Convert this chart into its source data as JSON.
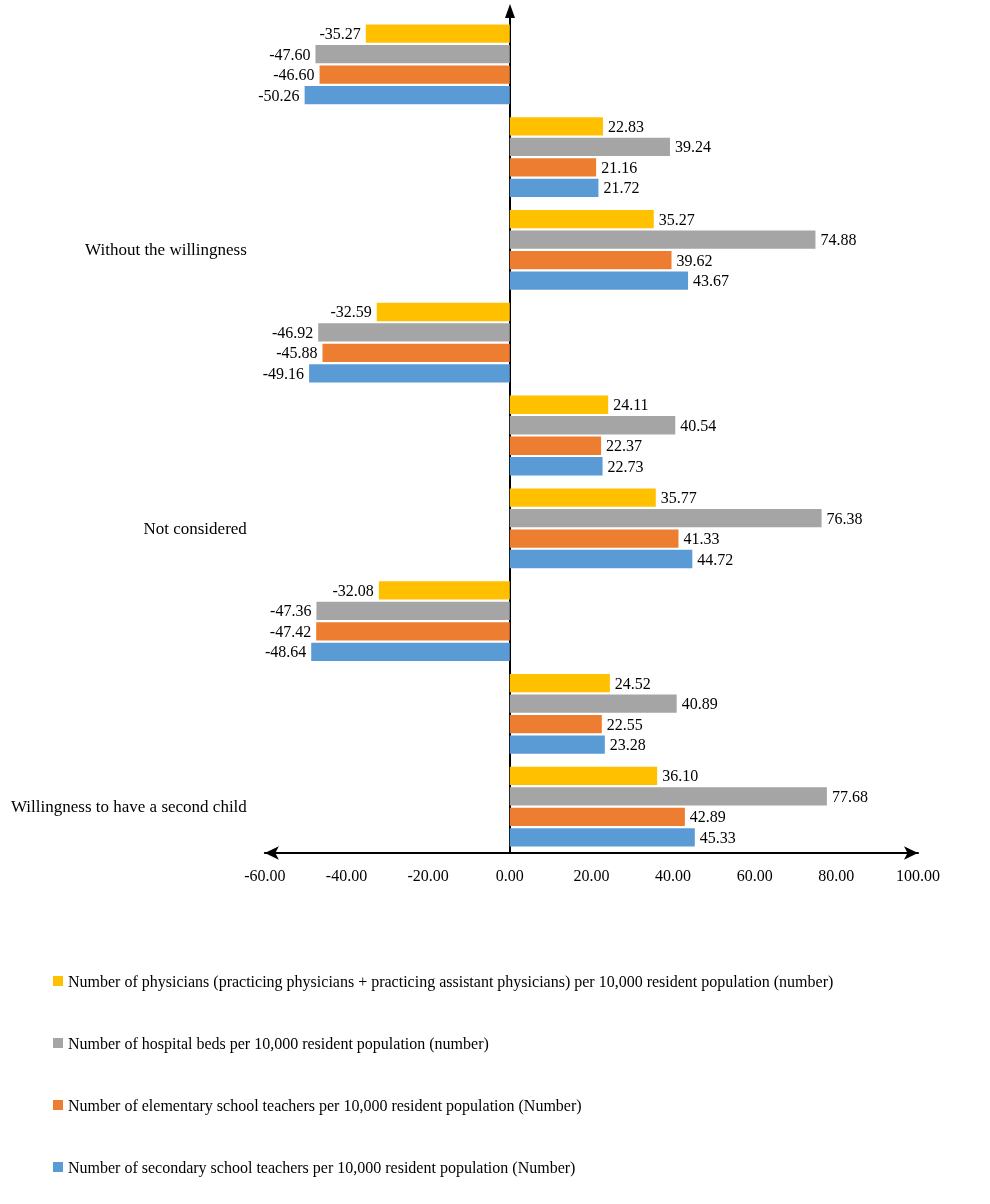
{
  "chart_data": {
    "type": "bar",
    "orientation": "horizontal",
    "categories": [
      null,
      null,
      "Without the willingness",
      null,
      null,
      "Not considered",
      null,
      null,
      "Willingness to have a second child"
    ],
    "series": [
      {
        "name": "Number of physicians (practicing physicians + practicing assistant physicians) per 10,000 resident population (number)",
        "color": "#ffc000",
        "values": [
          -35.27,
          22.83,
          35.27,
          -32.59,
          24.11,
          35.77,
          -32.08,
          24.52,
          36.1
        ],
        "value_labels": [
          "-35.27",
          "22.83",
          "35.27",
          "-32.59",
          "24.11",
          "35.77",
          "-32.08",
          "24.52",
          "36.10"
        ]
      },
      {
        "name": "Number of hospital beds per 10,000 resident population (number)",
        "color": "#a5a5a5",
        "values": [
          -47.6,
          39.24,
          74.88,
          -46.92,
          40.54,
          76.38,
          -47.36,
          40.89,
          77.68
        ],
        "value_labels": [
          "-47.60",
          "39.24",
          "74.88",
          "-46.92",
          "40.54",
          "76.38",
          "-47.36",
          "40.89",
          "77.68"
        ]
      },
      {
        "name": "Number of elementary school teachers per 10,000 resident population (Number)",
        "color": "#ed7d31",
        "values": [
          -46.6,
          21.16,
          39.62,
          -45.88,
          22.37,
          41.33,
          -47.42,
          22.55,
          42.89
        ],
        "value_labels": [
          "-46.60",
          "21.16",
          "39.62",
          "-45.88",
          "22.37",
          "41.33",
          "-47.42",
          "22.55",
          "42.89"
        ]
      },
      {
        "name": "Number of secondary school teachers per 10,000 resident population (Number)",
        "color": "#5b9bd5",
        "values": [
          -50.26,
          21.72,
          43.67,
          -49.16,
          22.73,
          44.72,
          -48.64,
          23.28,
          45.33
        ],
        "value_labels": [
          "-50.26",
          "21.72",
          "43.67",
          "-49.16",
          "22.73",
          "44.72",
          "-48.64",
          "23.28",
          "45.33"
        ]
      }
    ],
    "xlim": [
      -60,
      100
    ],
    "xticks": [
      {
        "value": -60,
        "label": "-60.00"
      },
      {
        "value": -40,
        "label": "-40.00"
      },
      {
        "value": -20,
        "label": "-20.00"
      },
      {
        "value": 0,
        "label": "0.00"
      },
      {
        "value": 20,
        "label": "20.00"
      },
      {
        "value": 40,
        "label": "40.00"
      },
      {
        "value": 60,
        "label": "60.00"
      },
      {
        "value": 80,
        "label": "80.00"
      },
      {
        "value": 100,
        "label": "100.00"
      }
    ],
    "legend": "bottom"
  }
}
